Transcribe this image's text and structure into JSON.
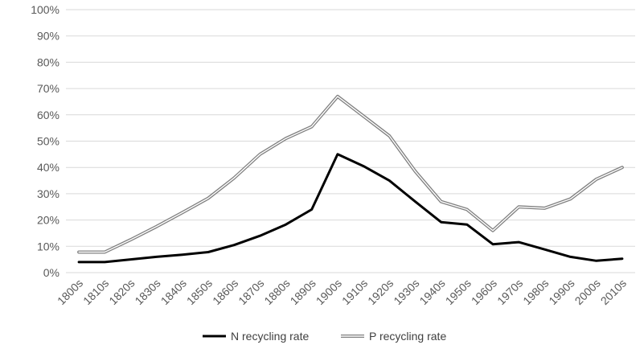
{
  "chart_data": {
    "type": "line",
    "title": "",
    "xlabel": "",
    "ylabel": "",
    "categories": [
      "1800s",
      "1810s",
      "1820s",
      "1830s",
      "1840s",
      "1850s",
      "1860s",
      "1870s",
      "1880s",
      "1890s",
      "1900s",
      "1910s",
      "1920s",
      "1930s",
      "1940s",
      "1950s",
      "1960s",
      "1970s",
      "1980s",
      "1990s",
      "2000s",
      "2010s"
    ],
    "y_ticks": [
      "0%",
      "10%",
      "20%",
      "30%",
      "40%",
      "50%",
      "60%",
      "70%",
      "80%",
      "90%",
      "100%"
    ],
    "ylim": [
      0,
      100
    ],
    "grid": true,
    "legend_position": "bottom",
    "series": [
      {
        "name": "N recycling rate",
        "color": "#000000",
        "style": "solid",
        "values": [
          4,
          4,
          5,
          6,
          6.8,
          7.8,
          10.5,
          14,
          18.3,
          24,
          45,
          40.5,
          35,
          27,
          19.2,
          18.3,
          10.8,
          11.6,
          8.8,
          6,
          4.5,
          5.3
        ]
      },
      {
        "name": "P recycling rate",
        "color": "#808080",
        "style": "double",
        "values": [
          7.8,
          7.8,
          12.5,
          17.5,
          22.8,
          28.3,
          36,
          45,
          51,
          55.5,
          67,
          59.5,
          52,
          38.5,
          27,
          24,
          16,
          25,
          24.5,
          28,
          35.5,
          40
        ]
      }
    ]
  }
}
